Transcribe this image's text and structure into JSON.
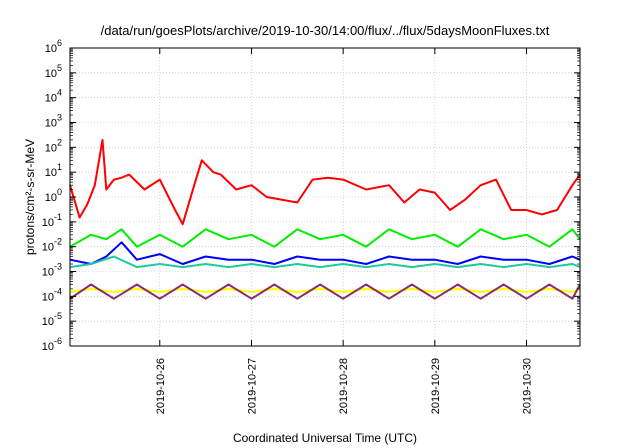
{
  "chart_data": {
    "type": "line",
    "title": "/data/run/goesPlots/archive/2019-10-30/14:00/flux/../flux/5daysMoonFluxes.txt",
    "xlabel": "Coordinated Universal Time (UTC)",
    "ylabel": "protons/cm²-s-sr-MeV",
    "yscale": "log",
    "ylim": [
      1e-06,
      1000000.0
    ],
    "xlim": [
      "2019-10-25T00:30",
      "2019-10-30T14:00"
    ],
    "grid": true,
    "x_ticks": [
      {
        "value": "2019-10-26",
        "label": "2019-10-26"
      },
      {
        "value": "2019-10-27",
        "label": "2019-10-27"
      },
      {
        "value": "2019-10-28",
        "label": "2019-10-28"
      },
      {
        "value": "2019-10-29",
        "label": "2019-10-29"
      },
      {
        "value": "2019-10-30",
        "label": "2019-10-30"
      }
    ],
    "y_ticks": [
      {
        "exp": "-6"
      },
      {
        "exp": "-5"
      },
      {
        "exp": "-4"
      },
      {
        "exp": "-3"
      },
      {
        "exp": "-2"
      },
      {
        "exp": "-1"
      },
      {
        "exp": "0"
      },
      {
        "exp": "1"
      },
      {
        "exp": "2"
      },
      {
        "exp": "3"
      },
      {
        "exp": "4"
      },
      {
        "exp": "5"
      },
      {
        "exp": "6"
      }
    ],
    "series": [
      {
        "color": "#ff0000",
        "x": [
          "2019-10-25T00:30",
          "2019-10-25T03:00",
          "2019-10-25T05:00",
          "2019-10-25T07:00",
          "2019-10-25T09:00",
          "2019-10-25T10:00",
          "2019-10-25T12:00",
          "2019-10-25T14:00",
          "2019-10-25T16:00",
          "2019-10-25T20:00",
          "2019-10-26T00:00",
          "2019-10-26T04:00",
          "2019-10-26T06:00",
          "2019-10-26T09:00",
          "2019-10-26T11:00",
          "2019-10-26T14:00",
          "2019-10-26T16:00",
          "2019-10-26T20:00",
          "2019-10-27T00:00",
          "2019-10-27T04:00",
          "2019-10-27T12:00",
          "2019-10-27T16:00",
          "2019-10-27T20:00",
          "2019-10-28T00:00",
          "2019-10-28T06:00",
          "2019-10-28T12:00",
          "2019-10-28T16:00",
          "2019-10-28T20:00",
          "2019-10-29T00:00",
          "2019-10-29T04:00",
          "2019-10-29T08:00",
          "2019-10-29T12:00",
          "2019-10-29T16:00",
          "2019-10-29T20:00",
          "2019-10-30T00:00",
          "2019-10-30T04:00",
          "2019-10-30T08:00",
          "2019-10-30T12:00",
          "2019-10-30T14:00"
        ],
        "y": [
          3,
          0.15,
          0.5,
          3,
          200,
          2,
          5,
          6,
          8,
          2,
          5,
          0.3,
          0.08,
          3,
          30,
          10,
          8,
          2,
          3,
          1,
          0.6,
          5,
          6,
          5,
          2,
          3,
          0.6,
          2,
          1.5,
          0.3,
          0.8,
          3,
          5,
          0.3,
          0.3,
          0.2,
          0.3,
          3,
          8
        ]
      },
      {
        "color": "#00ee00",
        "x": [
          "2019-10-25T00:30",
          "2019-10-25T06:00",
          "2019-10-25T10:00",
          "2019-10-25T14:00",
          "2019-10-25T18:00",
          "2019-10-26T00:00",
          "2019-10-26T06:00",
          "2019-10-26T12:00",
          "2019-10-26T18:00",
          "2019-10-27T00:00",
          "2019-10-27T06:00",
          "2019-10-27T12:00",
          "2019-10-27T18:00",
          "2019-10-28T00:00",
          "2019-10-28T06:00",
          "2019-10-28T12:00",
          "2019-10-28T18:00",
          "2019-10-29T00:00",
          "2019-10-29T06:00",
          "2019-10-29T12:00",
          "2019-10-29T18:00",
          "2019-10-30T00:00",
          "2019-10-30T06:00",
          "2019-10-30T12:00",
          "2019-10-30T14:00"
        ],
        "y": [
          0.01,
          0.03,
          0.02,
          0.05,
          0.01,
          0.03,
          0.01,
          0.05,
          0.02,
          0.03,
          0.01,
          0.05,
          0.02,
          0.03,
          0.01,
          0.05,
          0.02,
          0.03,
          0.01,
          0.05,
          0.02,
          0.03,
          0.01,
          0.05,
          0.02
        ]
      },
      {
        "color": "#0000ff",
        "x": [
          "2019-10-25T00:30",
          "2019-10-25T06:00",
          "2019-10-25T10:00",
          "2019-10-25T14:00",
          "2019-10-25T18:00",
          "2019-10-26T00:00",
          "2019-10-26T06:00",
          "2019-10-26T12:00",
          "2019-10-26T18:00",
          "2019-10-27T00:00",
          "2019-10-27T06:00",
          "2019-10-27T12:00",
          "2019-10-27T18:00",
          "2019-10-28T00:00",
          "2019-10-28T06:00",
          "2019-10-28T12:00",
          "2019-10-28T18:00",
          "2019-10-29T00:00",
          "2019-10-29T06:00",
          "2019-10-29T12:00",
          "2019-10-29T18:00",
          "2019-10-30T00:00",
          "2019-10-30T06:00",
          "2019-10-30T12:00",
          "2019-10-30T14:00"
        ],
        "y": [
          0.003,
          0.002,
          0.004,
          0.015,
          0.003,
          0.005,
          0.002,
          0.004,
          0.003,
          0.003,
          0.002,
          0.004,
          0.003,
          0.003,
          0.002,
          0.004,
          0.003,
          0.003,
          0.002,
          0.004,
          0.003,
          0.003,
          0.002,
          0.004,
          0.003
        ]
      },
      {
        "color": "#1ec8a0",
        "x": [
          "2019-10-25T00:30",
          "2019-10-25T06:00",
          "2019-10-25T12:00",
          "2019-10-25T18:00",
          "2019-10-26T00:00",
          "2019-10-26T06:00",
          "2019-10-26T12:00",
          "2019-10-26T18:00",
          "2019-10-27T00:00",
          "2019-10-27T06:00",
          "2019-10-27T12:00",
          "2019-10-27T18:00",
          "2019-10-28T00:00",
          "2019-10-28T06:00",
          "2019-10-28T12:00",
          "2019-10-28T18:00",
          "2019-10-29T00:00",
          "2019-10-29T06:00",
          "2019-10-29T12:00",
          "2019-10-29T18:00",
          "2019-10-30T00:00",
          "2019-10-30T06:00",
          "2019-10-30T12:00",
          "2019-10-30T14:00"
        ],
        "y": [
          0.0015,
          0.002,
          0.004,
          0.0015,
          0.002,
          0.0015,
          0.002,
          0.0015,
          0.002,
          0.0015,
          0.002,
          0.0015,
          0.002,
          0.0015,
          0.002,
          0.0015,
          0.002,
          0.0015,
          0.002,
          0.0015,
          0.002,
          0.0015,
          0.002,
          0.0015
        ]
      },
      {
        "color": "#ffff00",
        "x": [
          "2019-10-25T00:30",
          "2019-10-25T06:00",
          "2019-10-25T12:00",
          "2019-10-25T18:00",
          "2019-10-26T00:00",
          "2019-10-26T06:00",
          "2019-10-26T12:00",
          "2019-10-26T18:00",
          "2019-10-27T00:00",
          "2019-10-27T06:00",
          "2019-10-27T12:00",
          "2019-10-27T18:00",
          "2019-10-28T00:00",
          "2019-10-28T06:00",
          "2019-10-28T12:00",
          "2019-10-28T18:00",
          "2019-10-29T00:00",
          "2019-10-29T06:00",
          "2019-10-29T12:00",
          "2019-10-29T18:00",
          "2019-10-30T00:00",
          "2019-10-30T06:00",
          "2019-10-30T12:00",
          "2019-10-30T14:00"
        ],
        "y": [
          0.00015,
          0.0002,
          0.00015,
          0.0002,
          0.00015,
          0.0002,
          0.00015,
          0.0002,
          0.00015,
          0.0002,
          0.00015,
          0.0002,
          0.00015,
          0.0002,
          0.00015,
          0.0002,
          0.00015,
          0.0002,
          0.00015,
          0.0002,
          0.00015,
          0.0002,
          0.00015,
          0.0002
        ]
      },
      {
        "color": "#8b2a6e",
        "x": [
          "2019-10-25T00:30",
          "2019-10-25T06:00",
          "2019-10-25T12:00",
          "2019-10-25T18:00",
          "2019-10-26T00:00",
          "2019-10-26T06:00",
          "2019-10-26T12:00",
          "2019-10-26T18:00",
          "2019-10-27T00:00",
          "2019-10-27T06:00",
          "2019-10-27T12:00",
          "2019-10-27T18:00",
          "2019-10-28T00:00",
          "2019-10-28T06:00",
          "2019-10-28T12:00",
          "2019-10-28T18:00",
          "2019-10-29T00:00",
          "2019-10-29T06:00",
          "2019-10-29T12:00",
          "2019-10-29T18:00",
          "2019-10-30T00:00",
          "2019-10-30T06:00",
          "2019-10-30T12:00",
          "2019-10-30T14:00"
        ],
        "y": [
          8e-05,
          0.0003,
          8e-05,
          0.0003,
          8e-05,
          0.0003,
          8e-05,
          0.0003,
          8e-05,
          0.0003,
          8e-05,
          0.0003,
          8e-05,
          0.0003,
          8e-05,
          0.0003,
          8e-05,
          0.0003,
          8e-05,
          0.0003,
          8e-05,
          0.0003,
          8e-05,
          0.0003
        ]
      }
    ]
  }
}
